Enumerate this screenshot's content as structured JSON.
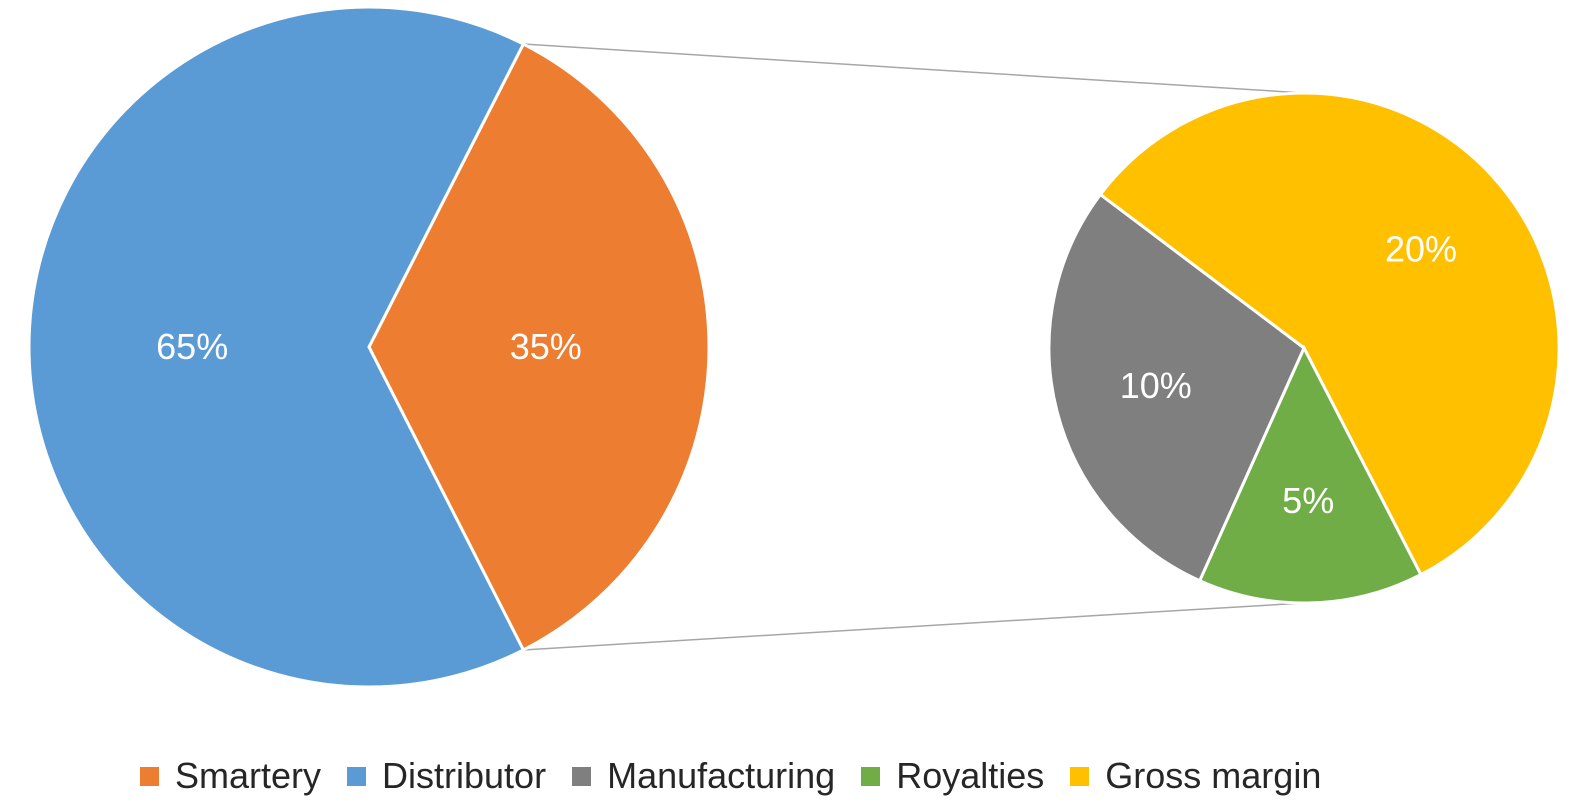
{
  "chart_data": {
    "type": "pie",
    "subtype": "pie-of-pie",
    "title": "",
    "main_pie": {
      "slices": [
        {
          "name": "Smartery",
          "value": 35,
          "label": "35%",
          "color": "#ED7D31"
        },
        {
          "name": "Distributor",
          "value": 65,
          "label": "65%",
          "color": "#5B9BD5"
        }
      ]
    },
    "secondary_pie": {
      "expands": "Smartery",
      "slices": [
        {
          "name": "Gross margin",
          "value": 20,
          "label": "20%",
          "color": "#FFC000"
        },
        {
          "name": "Royalties",
          "value": 5,
          "label": "5%",
          "color": "#70AD47"
        },
        {
          "name": "Manufacturing",
          "value": 10,
          "label": "10%",
          "color": "#7F7F7F"
        }
      ]
    },
    "legend": {
      "position": "bottom",
      "entries": [
        {
          "name": "Smartery",
          "color": "#ED7D31"
        },
        {
          "name": "Distributor",
          "color": "#5B9BD5"
        },
        {
          "name": "Manufacturing",
          "color": "#7F7F7F"
        },
        {
          "name": "Royalties",
          "color": "#70AD47"
        },
        {
          "name": "Gross margin",
          "color": "#FFC000"
        }
      ]
    },
    "connector_color": "#A6A6A6"
  }
}
